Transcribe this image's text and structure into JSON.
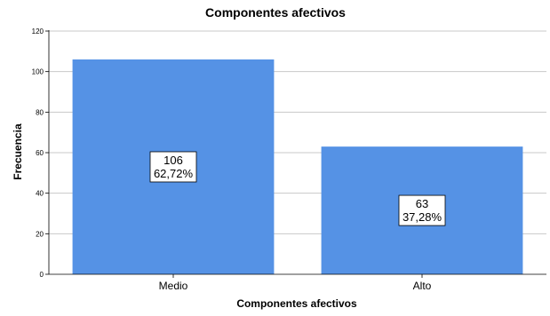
{
  "chart_data": {
    "type": "bar",
    "title": "Componentes afectivos",
    "xlabel": "Componentes afectivos",
    "ylabel": "Frecuencia",
    "categories": [
      "Medio",
      "Alto"
    ],
    "values": [
      106,
      63
    ],
    "data_labels": [
      {
        "count": "106",
        "percent": "62,72%"
      },
      {
        "count": "63",
        "percent": "37,28%"
      }
    ],
    "ylim": [
      0,
      120
    ],
    "yticks": [
      0,
      20,
      40,
      60,
      80,
      100,
      120
    ],
    "grid": true,
    "legend": "none",
    "bar_color": "#5592e5",
    "grid_color": "#c8c8c8"
  }
}
